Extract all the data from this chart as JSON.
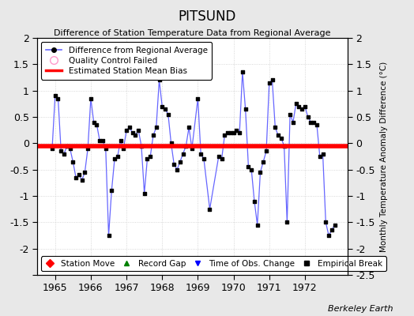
{
  "title": "PITSUND",
  "subtitle": "Difference of Station Temperature Data from Regional Average",
  "ylabel": "Monthly Temperature Anomaly Difference (°C)",
  "bias": -0.05,
  "xlim": [
    1964.5,
    1973.2
  ],
  "ylim": [
    -2.5,
    2.0
  ],
  "yticks": [
    -2.5,
    -2.0,
    -1.5,
    -1.0,
    -0.5,
    0.0,
    0.5,
    1.0,
    1.5,
    2.0
  ],
  "xticks": [
    1965,
    1966,
    1967,
    1968,
    1969,
    1970,
    1971,
    1972
  ],
  "background_color": "#e8e8e8",
  "plot_bg_color": "#ffffff",
  "line_color": "#6666ff",
  "marker_color": "#000000",
  "bias_color": "#ff0000",
  "berkeley_earth_text": "Berkeley Earth",
  "data": [
    [
      1964.917,
      -0.1
    ],
    [
      1965.0,
      0.9
    ],
    [
      1965.083,
      0.85
    ],
    [
      1965.167,
      -0.15
    ],
    [
      1965.25,
      -0.2
    ],
    [
      1965.333,
      -0.05
    ],
    [
      1965.417,
      -0.1
    ],
    [
      1965.5,
      -0.35
    ],
    [
      1965.583,
      -0.65
    ],
    [
      1965.667,
      -0.6
    ],
    [
      1965.75,
      -0.7
    ],
    [
      1965.833,
      -0.55
    ],
    [
      1965.917,
      -0.1
    ],
    [
      1966.0,
      0.85
    ],
    [
      1966.083,
      0.4
    ],
    [
      1966.167,
      0.35
    ],
    [
      1966.25,
      0.05
    ],
    [
      1966.333,
      0.05
    ],
    [
      1966.417,
      -0.1
    ],
    [
      1966.5,
      -1.75
    ],
    [
      1966.583,
      -0.9
    ],
    [
      1966.667,
      -0.3
    ],
    [
      1966.75,
      -0.25
    ],
    [
      1966.833,
      0.05
    ],
    [
      1966.917,
      -0.1
    ],
    [
      1967.0,
      0.25
    ],
    [
      1967.083,
      0.3
    ],
    [
      1967.167,
      0.2
    ],
    [
      1967.25,
      0.15
    ],
    [
      1967.333,
      0.25
    ],
    [
      1967.417,
      -0.05
    ],
    [
      1967.5,
      -0.95
    ],
    [
      1967.583,
      -0.3
    ],
    [
      1967.667,
      -0.25
    ],
    [
      1967.75,
      0.15
    ],
    [
      1967.833,
      0.3
    ],
    [
      1967.917,
      1.2
    ],
    [
      1968.0,
      0.7
    ],
    [
      1968.083,
      0.65
    ],
    [
      1968.167,
      0.55
    ],
    [
      1968.25,
      0.0
    ],
    [
      1968.333,
      -0.4
    ],
    [
      1968.417,
      -0.5
    ],
    [
      1968.5,
      -0.35
    ],
    [
      1968.583,
      -0.2
    ],
    [
      1968.667,
      -0.05
    ],
    [
      1968.75,
      0.3
    ],
    [
      1968.833,
      -0.1
    ],
    [
      1969.0,
      0.85
    ],
    [
      1969.083,
      -0.2
    ],
    [
      1969.167,
      -0.3
    ],
    [
      1969.333,
      -1.25
    ],
    [
      1969.583,
      -0.25
    ],
    [
      1969.667,
      -0.3
    ],
    [
      1969.75,
      0.15
    ],
    [
      1969.833,
      0.2
    ],
    [
      1969.917,
      0.2
    ],
    [
      1970.0,
      0.2
    ],
    [
      1970.083,
      0.25
    ],
    [
      1970.167,
      0.2
    ],
    [
      1970.25,
      1.35
    ],
    [
      1970.333,
      0.65
    ],
    [
      1970.417,
      -0.45
    ],
    [
      1970.5,
      -0.5
    ],
    [
      1970.583,
      -1.1
    ],
    [
      1970.667,
      -1.55
    ],
    [
      1970.75,
      -0.55
    ],
    [
      1970.833,
      -0.35
    ],
    [
      1970.917,
      -0.15
    ],
    [
      1971.0,
      1.15
    ],
    [
      1971.083,
      1.2
    ],
    [
      1971.167,
      0.3
    ],
    [
      1971.25,
      0.15
    ],
    [
      1971.333,
      0.1
    ],
    [
      1971.417,
      -0.05
    ],
    [
      1971.5,
      -1.5
    ],
    [
      1971.583,
      0.55
    ],
    [
      1971.667,
      0.4
    ],
    [
      1971.75,
      0.75
    ],
    [
      1971.833,
      0.7
    ],
    [
      1971.917,
      0.65
    ],
    [
      1972.0,
      0.7
    ],
    [
      1972.083,
      0.5
    ],
    [
      1972.167,
      0.4
    ],
    [
      1972.25,
      0.4
    ],
    [
      1972.333,
      0.35
    ],
    [
      1972.417,
      -0.25
    ],
    [
      1972.5,
      -0.2
    ],
    [
      1972.583,
      -1.5
    ],
    [
      1972.667,
      -1.75
    ],
    [
      1972.75,
      -1.65
    ],
    [
      1972.833,
      -1.55
    ]
  ]
}
